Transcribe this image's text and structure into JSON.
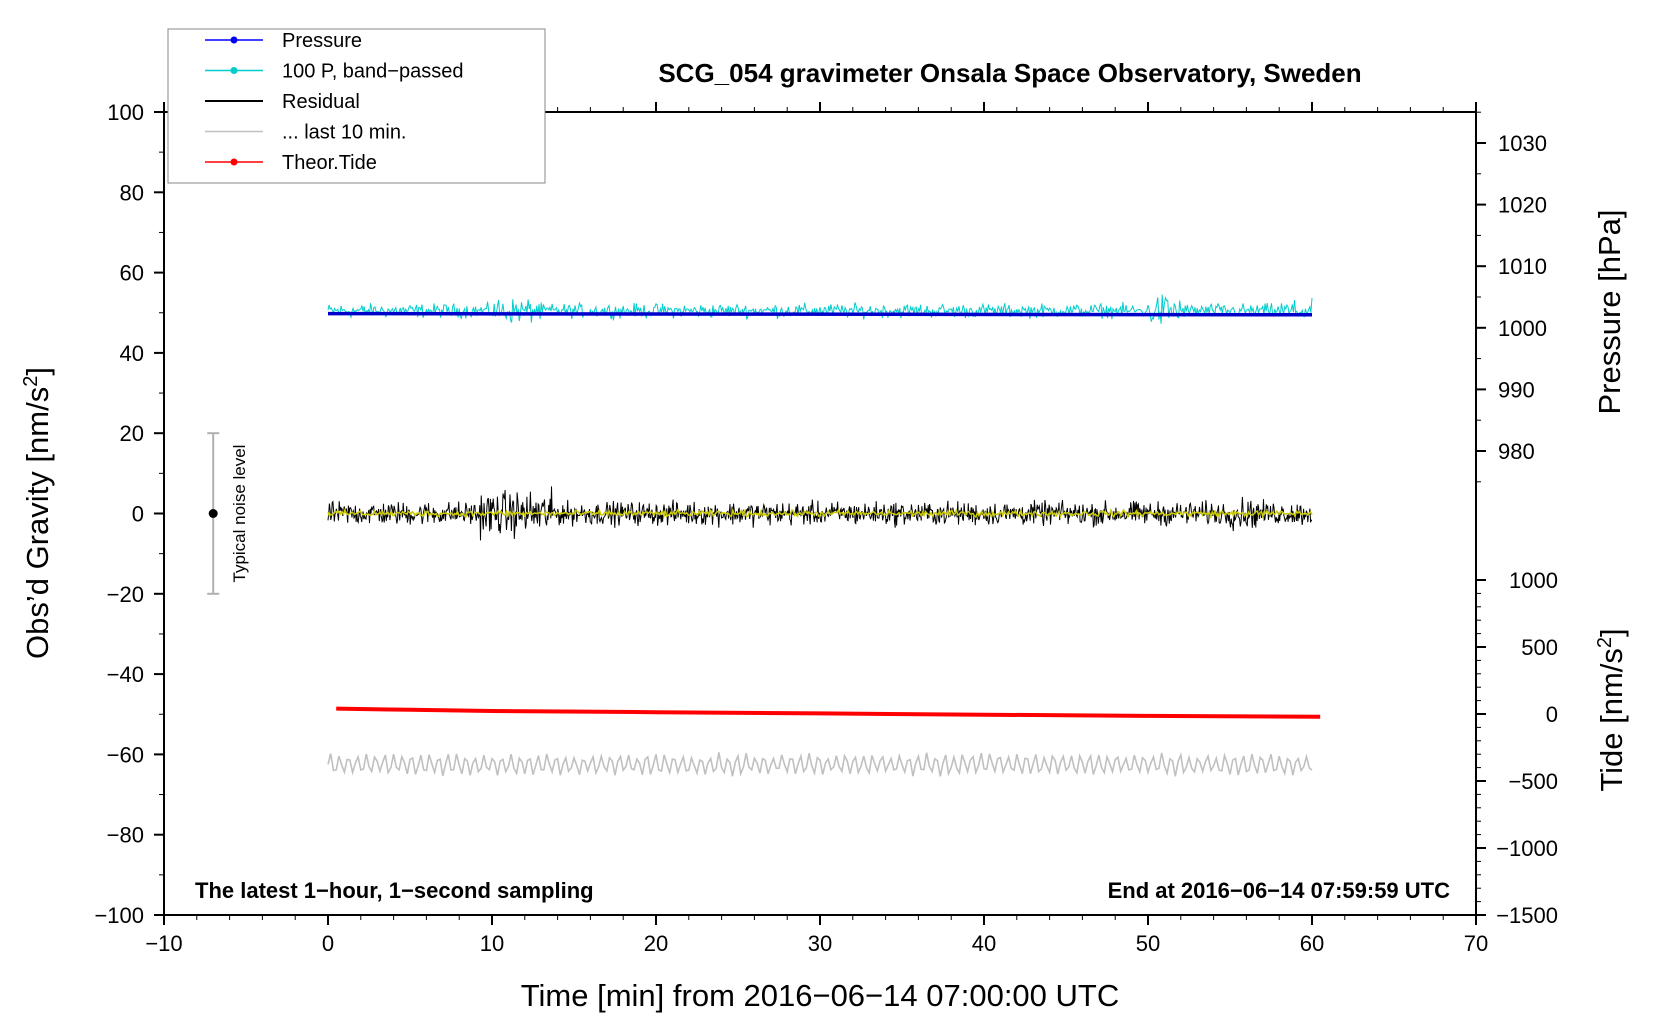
{
  "chart_data": {
    "type": "line",
    "title": "SCG_054 gravimeter Onsala Space Observatory, Sweden",
    "xlabel": "Time [min] from 2016−06−14 07:00:00 UTC",
    "ylabel_left": "Obs’d Gravity [nm/s2]",
    "ylabel_pressure": "Pressure [hPa]",
    "ylabel_tide": "Tide [nm/s2]",
    "xlim": [
      -10,
      70
    ],
    "ylim": [
      -100,
      100
    ],
    "x_ticks": [
      "−10",
      "0",
      "10",
      "20",
      "30",
      "40",
      "50",
      "60",
      "70"
    ],
    "y_ticks": [
      "−100",
      "−80",
      "−60",
      "−40",
      "−20",
      "0",
      "20",
      "40",
      "60",
      "80",
      "100"
    ],
    "pressure_ticks": [
      "980",
      "990",
      "1000",
      "1010",
      "1020",
      "1030"
    ],
    "tide_ticks": [
      "−1500",
      "−1000",
      "−500",
      "0",
      "500",
      "1000"
    ],
    "note_left": "The latest 1−hour, 1−second sampling",
    "note_right": "End at 2016−06−14 07:59:59 UTC",
    "noise_label": "Typical noise level",
    "noise_level": {
      "x": -7,
      "center": 0,
      "low": -20,
      "high": 20
    },
    "legend": {
      "position": "top-left",
      "entries": [
        {
          "label": "Pressure",
          "color": "#0000ff",
          "marker": true
        },
        {
          "label": "100 P, band−passed",
          "color": "#00cccc",
          "marker": true
        },
        {
          "label": "Residual",
          "color": "#000000",
          "marker": false
        },
        {
          "label": "... last 10 min.",
          "color": "#c0c0c0",
          "marker": false
        },
        {
          "label": "Theor.Tide",
          "color": "#ff0000",
          "marker": true
        }
      ]
    },
    "series": [
      {
        "name": "Pressure",
        "color": "#0000cc",
        "x": [
          0,
          60
        ],
        "values": [
          49.8,
          49.5
        ]
      },
      {
        "name": "100 P, band-passed",
        "color": "#00cccc",
        "x_range": [
          0,
          60
        ],
        "level": 50.5,
        "amplitude": 1.2
      },
      {
        "name": "Residual",
        "color": "#000000",
        "x_range": [
          0,
          60
        ],
        "level": 0,
        "amplitude": 2.0
      },
      {
        "name": "Residual smoothed",
        "color": "#cccc00",
        "x_range": [
          0,
          60
        ],
        "level": 0,
        "amplitude": 0.5
      },
      {
        "name": "Theor.Tide",
        "color": "#ff0000",
        "x": [
          0.5,
          5,
          10,
          20,
          30,
          40,
          50,
          60.5
        ],
        "values": [
          -48.6,
          -48.9,
          -49.2,
          -49.5,
          -49.8,
          -50.1,
          -50.4,
          -50.6
        ]
      },
      {
        "name": "... last 10 min.",
        "color": "#c0c0c0",
        "x_range": [
          0,
          60
        ],
        "level": -62.5,
        "amplitude": 2.5
      }
    ]
  }
}
